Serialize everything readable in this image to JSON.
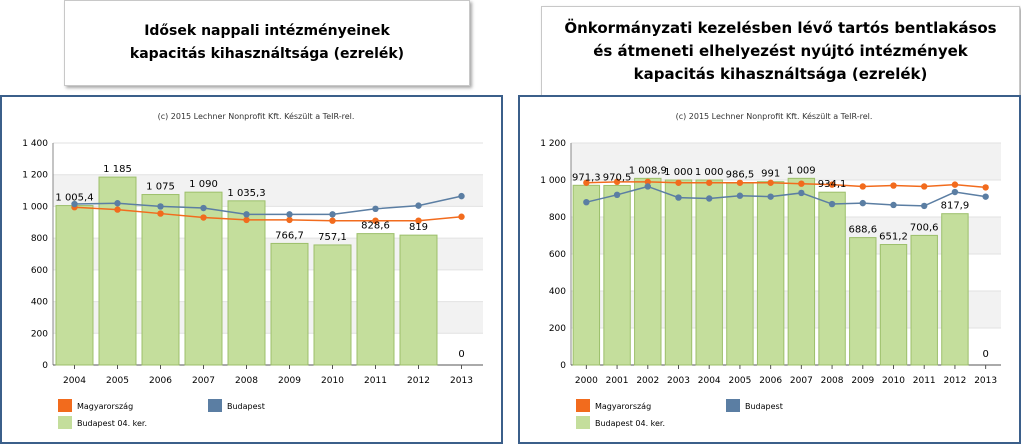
{
  "titles": {
    "left": [
      "Idősek nappali intézményeinek",
      "kapacitás kihasználtsága (ezrelék)"
    ],
    "right": [
      "Önkormányzati kezelésben lévő tartós bentlakásos",
      "és átmeneti elhelyezést nyújtó intézmények",
      "kapacitás kihasználtsága (ezrelék)"
    ]
  },
  "colors": {
    "magyarorszag": "#f26b1d",
    "budapest": "#5b7ea3",
    "bar_fill": "#c4de9c",
    "bar_stroke": "#9cbf6a",
    "panel_border": "#3b5f8a"
  },
  "chart_data": [
    {
      "type": "bar",
      "credit": "(c) 2015 Lechner Nonprofit Kft. Készült a TeIR-rel.",
      "categories": [
        "2004",
        "2005",
        "2006",
        "2007",
        "2008",
        "2009",
        "2010",
        "2011",
        "2012",
        "2013"
      ],
      "ylim": [
        0,
        1400
      ],
      "yticks": [
        0,
        200,
        400,
        600,
        800,
        1000,
        1200,
        1400
      ],
      "ytick_labels": [
        "0",
        "200",
        "400",
        "600",
        "800",
        "1 000",
        "1 200",
        "1 400"
      ],
      "bar_series": {
        "name": "Budapest 04. ker.",
        "values": [
          1005.4,
          1185,
          1075,
          1090,
          1035.3,
          766.7,
          757.1,
          828.6,
          819,
          0
        ],
        "labels": [
          "1 005,4",
          "1 185",
          "1 075",
          "1 090",
          "1 035,3",
          "766,7",
          "757,1",
          "828,6",
          "819",
          "0"
        ]
      },
      "line_series": [
        {
          "name": "Magyarország",
          "values": [
            995,
            980,
            955,
            930,
            915,
            915,
            910,
            910,
            910,
            935
          ]
        },
        {
          "name": "Budapest",
          "values": [
            1015,
            1020,
            1000,
            990,
            950,
            950,
            950,
            985,
            1005,
            1065
          ]
        }
      ],
      "legend": [
        "Magyarország",
        "Budapest",
        "Budapest 04. ker."
      ],
      "legend_position": "bottom-left",
      "grid": true
    },
    {
      "type": "bar",
      "credit": "(c) 2015 Lechner Nonprofit Kft. Készült a TeIR-rel.",
      "categories": [
        "2000",
        "2001",
        "2002",
        "2003",
        "2004",
        "2005",
        "2006",
        "2007",
        "2008",
        "2009",
        "2010",
        "2011",
        "2012",
        "2013"
      ],
      "ylim": [
        0,
        1200
      ],
      "yticks": [
        0,
        200,
        400,
        600,
        800,
        1000,
        1200
      ],
      "ytick_labels": [
        "0",
        "200",
        "400",
        "600",
        "800",
        "1 000",
        "1 200"
      ],
      "bar_series": {
        "name": "Budapest 04. ker.",
        "values": [
          971.3,
          970.5,
          1008.9,
          1000,
          1000,
          986.5,
          991,
          1009,
          934.1,
          688.6,
          651.2,
          700.6,
          817.9,
          0
        ],
        "labels": [
          "971,3",
          "970,5",
          "1 008,9",
          "1 000",
          "1 000",
          "986,5",
          "991",
          "1 009",
          "934,1",
          "688,6",
          "651,2",
          "700,6",
          "817,9",
          "0"
        ]
      },
      "line_series": [
        {
          "name": "Magyarország",
          "values": [
            985,
            990,
            990,
            985,
            985,
            985,
            985,
            980,
            975,
            965,
            970,
            965,
            975,
            960
          ]
        },
        {
          "name": "Budapest",
          "values": [
            880,
            920,
            965,
            905,
            900,
            915,
            910,
            930,
            870,
            875,
            865,
            860,
            935,
            910
          ]
        }
      ],
      "legend": [
        "Magyarország",
        "Budapest",
        "Budapest 04. ker."
      ],
      "legend_position": "bottom-left",
      "grid": true
    }
  ]
}
